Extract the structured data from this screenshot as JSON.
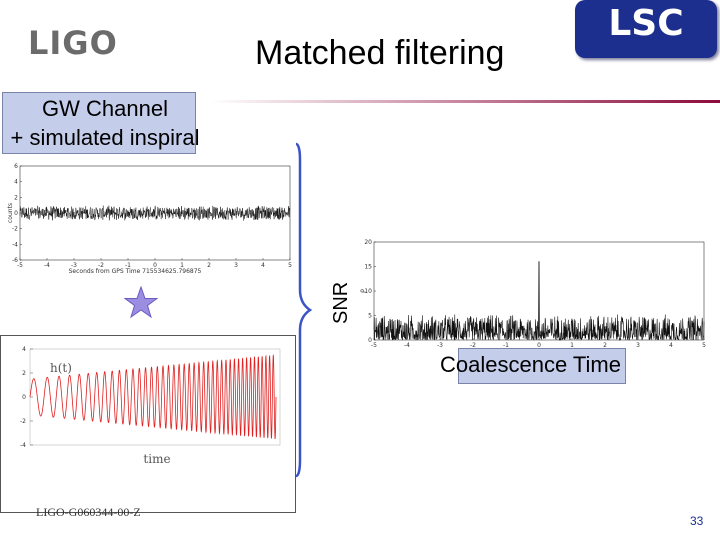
{
  "slide": {
    "title": "Matched filtering",
    "logo_left_text": "LIGO",
    "logo_right_text": "LSC",
    "gw_label_line1": "GW Channel",
    "gw_label_line2": "+ simulated inspiral",
    "snr_label": "SNR",
    "coalescence_label": "Coalescence Time",
    "footer_id": "LIGO-G060344-00-Z",
    "page_number": "33"
  },
  "colors": {
    "lsc_blue": "#1c2f8f",
    "box_fill": "#c4cdea",
    "star": "#9b8ee0",
    "bracket": "#3a54c8",
    "waveform": "#e02020",
    "rule_end": "#8c0a3c"
  },
  "chart_data": [
    {
      "type": "line",
      "name": "gw-channel-timeseries",
      "title": "",
      "xlabel": "Seconds from GPS Time 715534625.796875",
      "ylabel": "counts",
      "xlim": [
        -5,
        5
      ],
      "ylim": [
        -6,
        6
      ],
      "x_ticks": [
        -5,
        -4,
        -3,
        -2,
        -1,
        0,
        1,
        2,
        3,
        4,
        5
      ],
      "y_ticks": [
        -6,
        -4,
        -2,
        0,
        2,
        4,
        6
      ],
      "noise_band": [
        -1,
        1
      ],
      "grid": false
    },
    {
      "type": "line",
      "name": "snr-timeseries",
      "title": "",
      "xlabel": "",
      "ylabel": "ρ",
      "xlim": [
        -5,
        5
      ],
      "ylim": [
        0,
        20
      ],
      "x_ticks": [
        -5,
        -4,
        -3,
        -2,
        -1,
        0,
        1,
        2,
        3,
        4,
        5
      ],
      "y_ticks": [
        0,
        5,
        10,
        15,
        20
      ],
      "noise_floor": [
        0,
        4
      ],
      "peak": {
        "x": 0,
        "y": 16
      },
      "grid": false
    },
    {
      "type": "line",
      "name": "inspiral-waveform",
      "title": "",
      "xlabel": "time",
      "ylabel": "h(t)",
      "ylim": [
        -4,
        4
      ],
      "y_ticks": [
        -4,
        -2,
        0,
        2,
        4
      ],
      "amplitude_start": 1.5,
      "amplitude_end": 3.5,
      "grid": false
    }
  ]
}
